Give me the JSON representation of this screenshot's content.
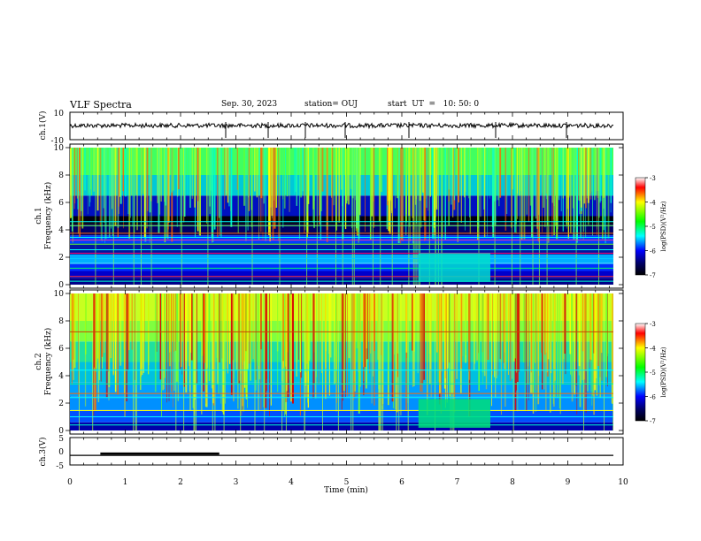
{
  "header": {
    "title": "VLF Spectra",
    "date": "Sep. 30, 2023",
    "station": "station= OUJ",
    "start": "start  UT  =   10: 50: 0"
  },
  "chart_data": [
    {
      "type": "line",
      "name": "ch1-waveform",
      "ylabel": "ch.1(V)",
      "ylim": [
        -10,
        10
      ],
      "y_ticklabels": [
        "10",
        "-10"
      ],
      "xlim": [
        0,
        10
      ],
      "baseline": 0,
      "noise_amplitude": 1.5
    },
    {
      "type": "heatmap",
      "name": "ch1-spectrogram",
      "ylabel": "ch.1\nFrequency (kHz)",
      "ylabel_line1": "ch.1",
      "ylabel_line2": "Frequency  (kHz)",
      "ylim": [
        0,
        10
      ],
      "y_ticklabels": [
        "0",
        "2",
        "4",
        "6",
        "8",
        "10"
      ],
      "xlim": [
        0,
        10
      ],
      "colorbar": {
        "label": "log(PSD)(V²/Hz)",
        "range": [
          -7,
          -3
        ],
        "ticklabels": [
          "-3",
          "-4",
          "-5",
          "-6",
          "-7"
        ]
      }
    },
    {
      "type": "heatmap",
      "name": "ch2-spectrogram",
      "ylabel_line1": "ch.2",
      "ylabel_line2": "Frequency  (kHz)",
      "ylim": [
        0,
        10
      ],
      "y_ticklabels": [
        "0",
        "2",
        "4",
        "6",
        "8",
        "10"
      ],
      "xlim": [
        0,
        10
      ],
      "colorbar": {
        "label": "log(PSD)(V²/Hz)",
        "range": [
          -7,
          -3
        ],
        "ticklabels": [
          "-3",
          "-4",
          "-5",
          "-6",
          "-7"
        ]
      }
    },
    {
      "type": "line",
      "name": "ch3-signal",
      "ylabel": "ch.3(V)",
      "ylim": [
        -5,
        5
      ],
      "y_ticklabels": [
        "5",
        "0",
        "-5"
      ],
      "xlim": [
        0,
        10
      ],
      "xlabel": "Time  (min)",
      "x_ticklabels": [
        "0",
        "1",
        "2",
        "3",
        "4",
        "5",
        "6",
        "7",
        "8",
        "9",
        "10"
      ],
      "baseline": -1.5,
      "thick_segment": [
        0.55,
        2.7
      ]
    }
  ],
  "colors": {
    "bg_dark": "#000033",
    "blue": "#0022dd",
    "cyan": "#00e5e5",
    "green": "#33ff33",
    "yellow": "#ffff00",
    "red": "#dd0000"
  }
}
